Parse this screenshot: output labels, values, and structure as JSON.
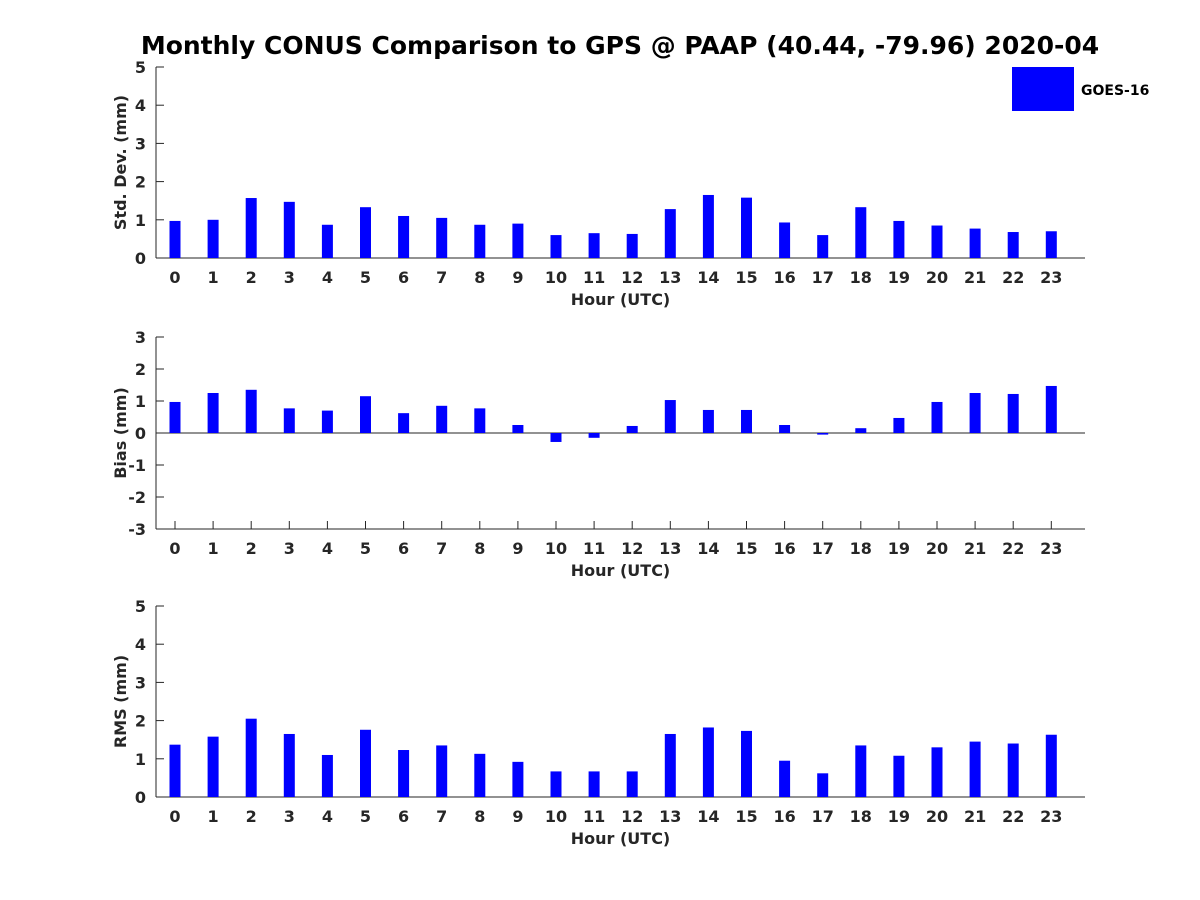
{
  "title": "Monthly CONUS Comparison to GPS @ PAAP (40.44, -79.96) 2020-04",
  "legend": {
    "label": "GOES-16",
    "color": "#0000ff"
  },
  "chart_data": [
    {
      "type": "bar",
      "id": "std",
      "xlabel": "Hour (UTC)",
      "ylabel": "Std. Dev. (mm)",
      "ylim": [
        0,
        5
      ],
      "yticks": [
        0,
        1,
        2,
        3,
        4,
        5
      ],
      "categories": [
        "0",
        "1",
        "2",
        "3",
        "4",
        "5",
        "6",
        "7",
        "8",
        "9",
        "10",
        "11",
        "12",
        "13",
        "14",
        "15",
        "16",
        "17",
        "18",
        "19",
        "20",
        "21",
        "22",
        "23"
      ],
      "series": [
        {
          "name": "GOES-16",
          "color": "#0000ff",
          "values": [
            0.97,
            1.0,
            1.57,
            1.47,
            0.87,
            1.33,
            1.1,
            1.05,
            0.87,
            0.9,
            0.6,
            0.65,
            0.63,
            1.28,
            1.65,
            1.58,
            0.93,
            0.6,
            1.33,
            0.97,
            0.85,
            0.77,
            0.68,
            0.7
          ]
        }
      ]
    },
    {
      "type": "bar",
      "id": "bias",
      "xlabel": "Hour (UTC)",
      "ylabel": "Bias (mm)",
      "ylim": [
        -3,
        3
      ],
      "yticks": [
        -3,
        -2,
        -1,
        0,
        1,
        2,
        3
      ],
      "zero_line": true,
      "categories": [
        "0",
        "1",
        "2",
        "3",
        "4",
        "5",
        "6",
        "7",
        "8",
        "9",
        "10",
        "11",
        "12",
        "13",
        "14",
        "15",
        "16",
        "17",
        "18",
        "19",
        "20",
        "21",
        "22",
        "23"
      ],
      "series": [
        {
          "name": "GOES-16",
          "color": "#0000ff",
          "values": [
            0.97,
            1.25,
            1.35,
            0.77,
            0.7,
            1.15,
            0.62,
            0.85,
            0.77,
            0.25,
            -0.28,
            -0.15,
            0.22,
            1.03,
            0.72,
            0.72,
            0.25,
            -0.05,
            0.15,
            0.47,
            0.97,
            1.25,
            1.22,
            1.47
          ]
        }
      ]
    },
    {
      "type": "bar",
      "id": "rms",
      "xlabel": "Hour (UTC)",
      "ylabel": "RMS (mm)",
      "ylim": [
        0,
        5
      ],
      "yticks": [
        0,
        1,
        2,
        3,
        4,
        5
      ],
      "categories": [
        "0",
        "1",
        "2",
        "3",
        "4",
        "5",
        "6",
        "7",
        "8",
        "9",
        "10",
        "11",
        "12",
        "13",
        "14",
        "15",
        "16",
        "17",
        "18",
        "19",
        "20",
        "21",
        "22",
        "23"
      ],
      "series": [
        {
          "name": "GOES-16",
          "color": "#0000ff",
          "values": [
            1.37,
            1.58,
            2.05,
            1.65,
            1.1,
            1.76,
            1.23,
            1.35,
            1.13,
            0.92,
            0.67,
            0.67,
            0.67,
            1.65,
            1.82,
            1.73,
            0.95,
            0.62,
            1.35,
            1.08,
            1.3,
            1.45,
            1.4,
            1.63
          ]
        }
      ]
    }
  ]
}
